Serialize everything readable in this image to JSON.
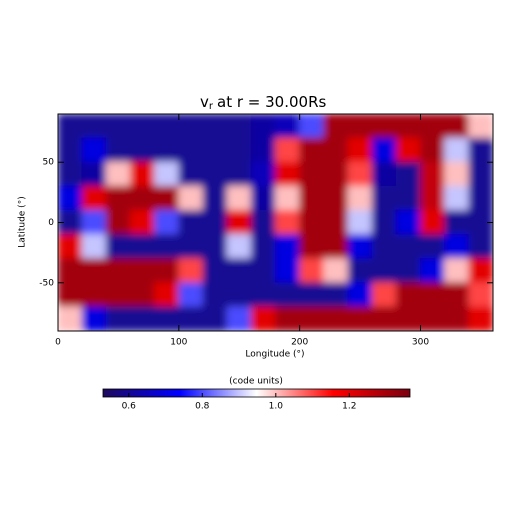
{
  "chart_data": {
    "type": "heatmap",
    "title": "v",
    "title_subscript": "r",
    "title_suffix": "at r = 30.00Rs",
    "x_label": "Longitude (°)",
    "y_label": "Latitude (°)",
    "xlim": [
      0,
      360
    ],
    "ylim": [
      -90,
      90
    ],
    "xticks": [
      0,
      100,
      200,
      300
    ],
    "yticks": [
      -50,
      0,
      50
    ],
    "x": [
      10,
      30,
      50,
      70,
      90,
      110,
      130,
      150,
      170,
      190,
      210,
      230,
      250,
      270,
      290,
      310,
      330,
      350
    ],
    "y": [
      80,
      60,
      40,
      20,
      0,
      -20,
      -40,
      -60,
      -80
    ],
    "z": [
      [
        0.6,
        0.6,
        0.6,
        0.6,
        0.6,
        0.6,
        0.6,
        0.6,
        0.62,
        0.65,
        0.8,
        1.3,
        1.3,
        1.3,
        1.3,
        1.3,
        1.3,
        1.0
      ],
      [
        0.6,
        0.7,
        0.6,
        0.6,
        0.6,
        0.6,
        0.6,
        0.6,
        0.62,
        1.1,
        1.3,
        1.3,
        1.2,
        0.7,
        1.2,
        1.3,
        0.9,
        0.6
      ],
      [
        0.6,
        0.62,
        1.0,
        1.2,
        0.9,
        0.6,
        0.6,
        0.6,
        0.65,
        1.2,
        1.3,
        1.3,
        1.1,
        0.62,
        0.6,
        1.25,
        1.0,
        0.6
      ],
      [
        0.7,
        1.2,
        1.3,
        1.3,
        1.3,
        1.0,
        0.6,
        1.0,
        0.62,
        1.0,
        1.3,
        1.3,
        1.0,
        0.6,
        0.6,
        1.25,
        0.9,
        0.6
      ],
      [
        0.6,
        0.8,
        1.3,
        1.2,
        0.8,
        0.6,
        0.6,
        1.2,
        0.6,
        1.1,
        1.3,
        1.3,
        0.9,
        0.6,
        0.7,
        1.2,
        0.6,
        0.6
      ],
      [
        1.2,
        0.9,
        0.6,
        0.6,
        0.6,
        0.6,
        0.6,
        0.9,
        0.6,
        0.7,
        1.3,
        1.3,
        0.7,
        0.6,
        0.6,
        0.6,
        0.7,
        0.6
      ],
      [
        1.3,
        1.3,
        1.3,
        1.3,
        1.3,
        1.1,
        0.6,
        0.6,
        0.6,
        0.7,
        1.1,
        1.0,
        0.6,
        0.6,
        0.6,
        0.7,
        1.0,
        1.2
      ],
      [
        1.3,
        1.3,
        1.3,
        1.3,
        1.2,
        0.8,
        0.6,
        0.6,
        0.6,
        0.6,
        0.6,
        0.6,
        0.7,
        1.1,
        1.3,
        1.3,
        1.3,
        1.1
      ],
      [
        1.0,
        0.7,
        0.6,
        0.6,
        0.6,
        0.6,
        0.6,
        0.8,
        1.2,
        1.3,
        1.3,
        1.3,
        1.3,
        1.3,
        1.3,
        1.3,
        1.3,
        1.2
      ]
    ],
    "colorbar_label": "(code units)",
    "clim": [
      0.53,
      1.365
    ],
    "cticks": [
      0.6,
      0.8,
      {
        "value": 1,
        "label": "1.0"
      },
      1.2
    ],
    "colorscale": [
      "#1e0a5c",
      "#0000ff",
      "#ffffff",
      "#ff0000",
      "#7a0010"
    ]
  }
}
